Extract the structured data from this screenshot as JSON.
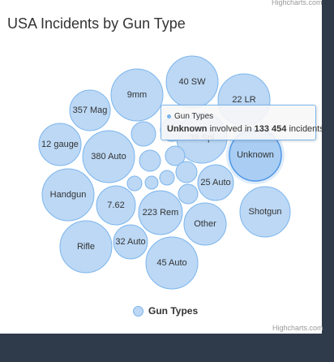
{
  "title": "USA Incidents by Gun Type",
  "credit": "Highcharts.com",
  "colors": {
    "bubble_fill": "#bcd8f5",
    "bubble_stroke": "#7cb5ec",
    "highlight_stroke": "#4e97e6"
  },
  "legend": {
    "label": "Gun Types",
    "symbol": "circle"
  },
  "tooltip": {
    "series": "Gun Types",
    "point": "Unknown",
    "text_mid": "involved in",
    "value": "133 454",
    "text_end": "incidents"
  },
  "chart_data": {
    "type": "packedbubble",
    "series": [
      {
        "name": "Gun Types",
        "points": [
          {
            "name": "40 SW",
            "label": "40 SW"
          },
          {
            "name": "22 LR",
            "label": "22 LR"
          },
          {
            "name": "9mm",
            "label": "9mm"
          },
          {
            "name": "357 Mag",
            "label": "357 Mag"
          },
          {
            "name": "12 gauge",
            "label": "12 gauge"
          },
          {
            "name": "380 Auto",
            "label": "380 Auto"
          },
          {
            "name": "38 Spl",
            "label": "38 Spl"
          },
          {
            "name": "Unknown",
            "label": "Unknown",
            "value": 133454
          },
          {
            "name": "Handgun",
            "label": "Handgun"
          },
          {
            "name": "7.62",
            "label": "7.62"
          },
          {
            "name": "223 Rem",
            "label": "223 Rem"
          },
          {
            "name": "25 Auto",
            "label": "25 Auto"
          },
          {
            "name": "Other",
            "label": "Other"
          },
          {
            "name": "Shotgun",
            "label": "Shotgun"
          },
          {
            "name": "Rifle",
            "label": "Rifle"
          },
          {
            "name": "32 Auto",
            "label": "32 Auto"
          },
          {
            "name": "45 Auto",
            "label": "45 Auto"
          },
          {
            "name": "small-1",
            "label": ""
          },
          {
            "name": "small-2",
            "label": ""
          },
          {
            "name": "small-3",
            "label": ""
          },
          {
            "name": "small-4",
            "label": ""
          },
          {
            "name": "small-5",
            "label": ""
          },
          {
            "name": "small-6",
            "label": ""
          },
          {
            "name": "small-7",
            "label": ""
          },
          {
            "name": "small-8",
            "label": ""
          },
          {
            "name": "small-9",
            "label": ""
          }
        ]
      }
    ],
    "hovered_point": "Unknown"
  }
}
